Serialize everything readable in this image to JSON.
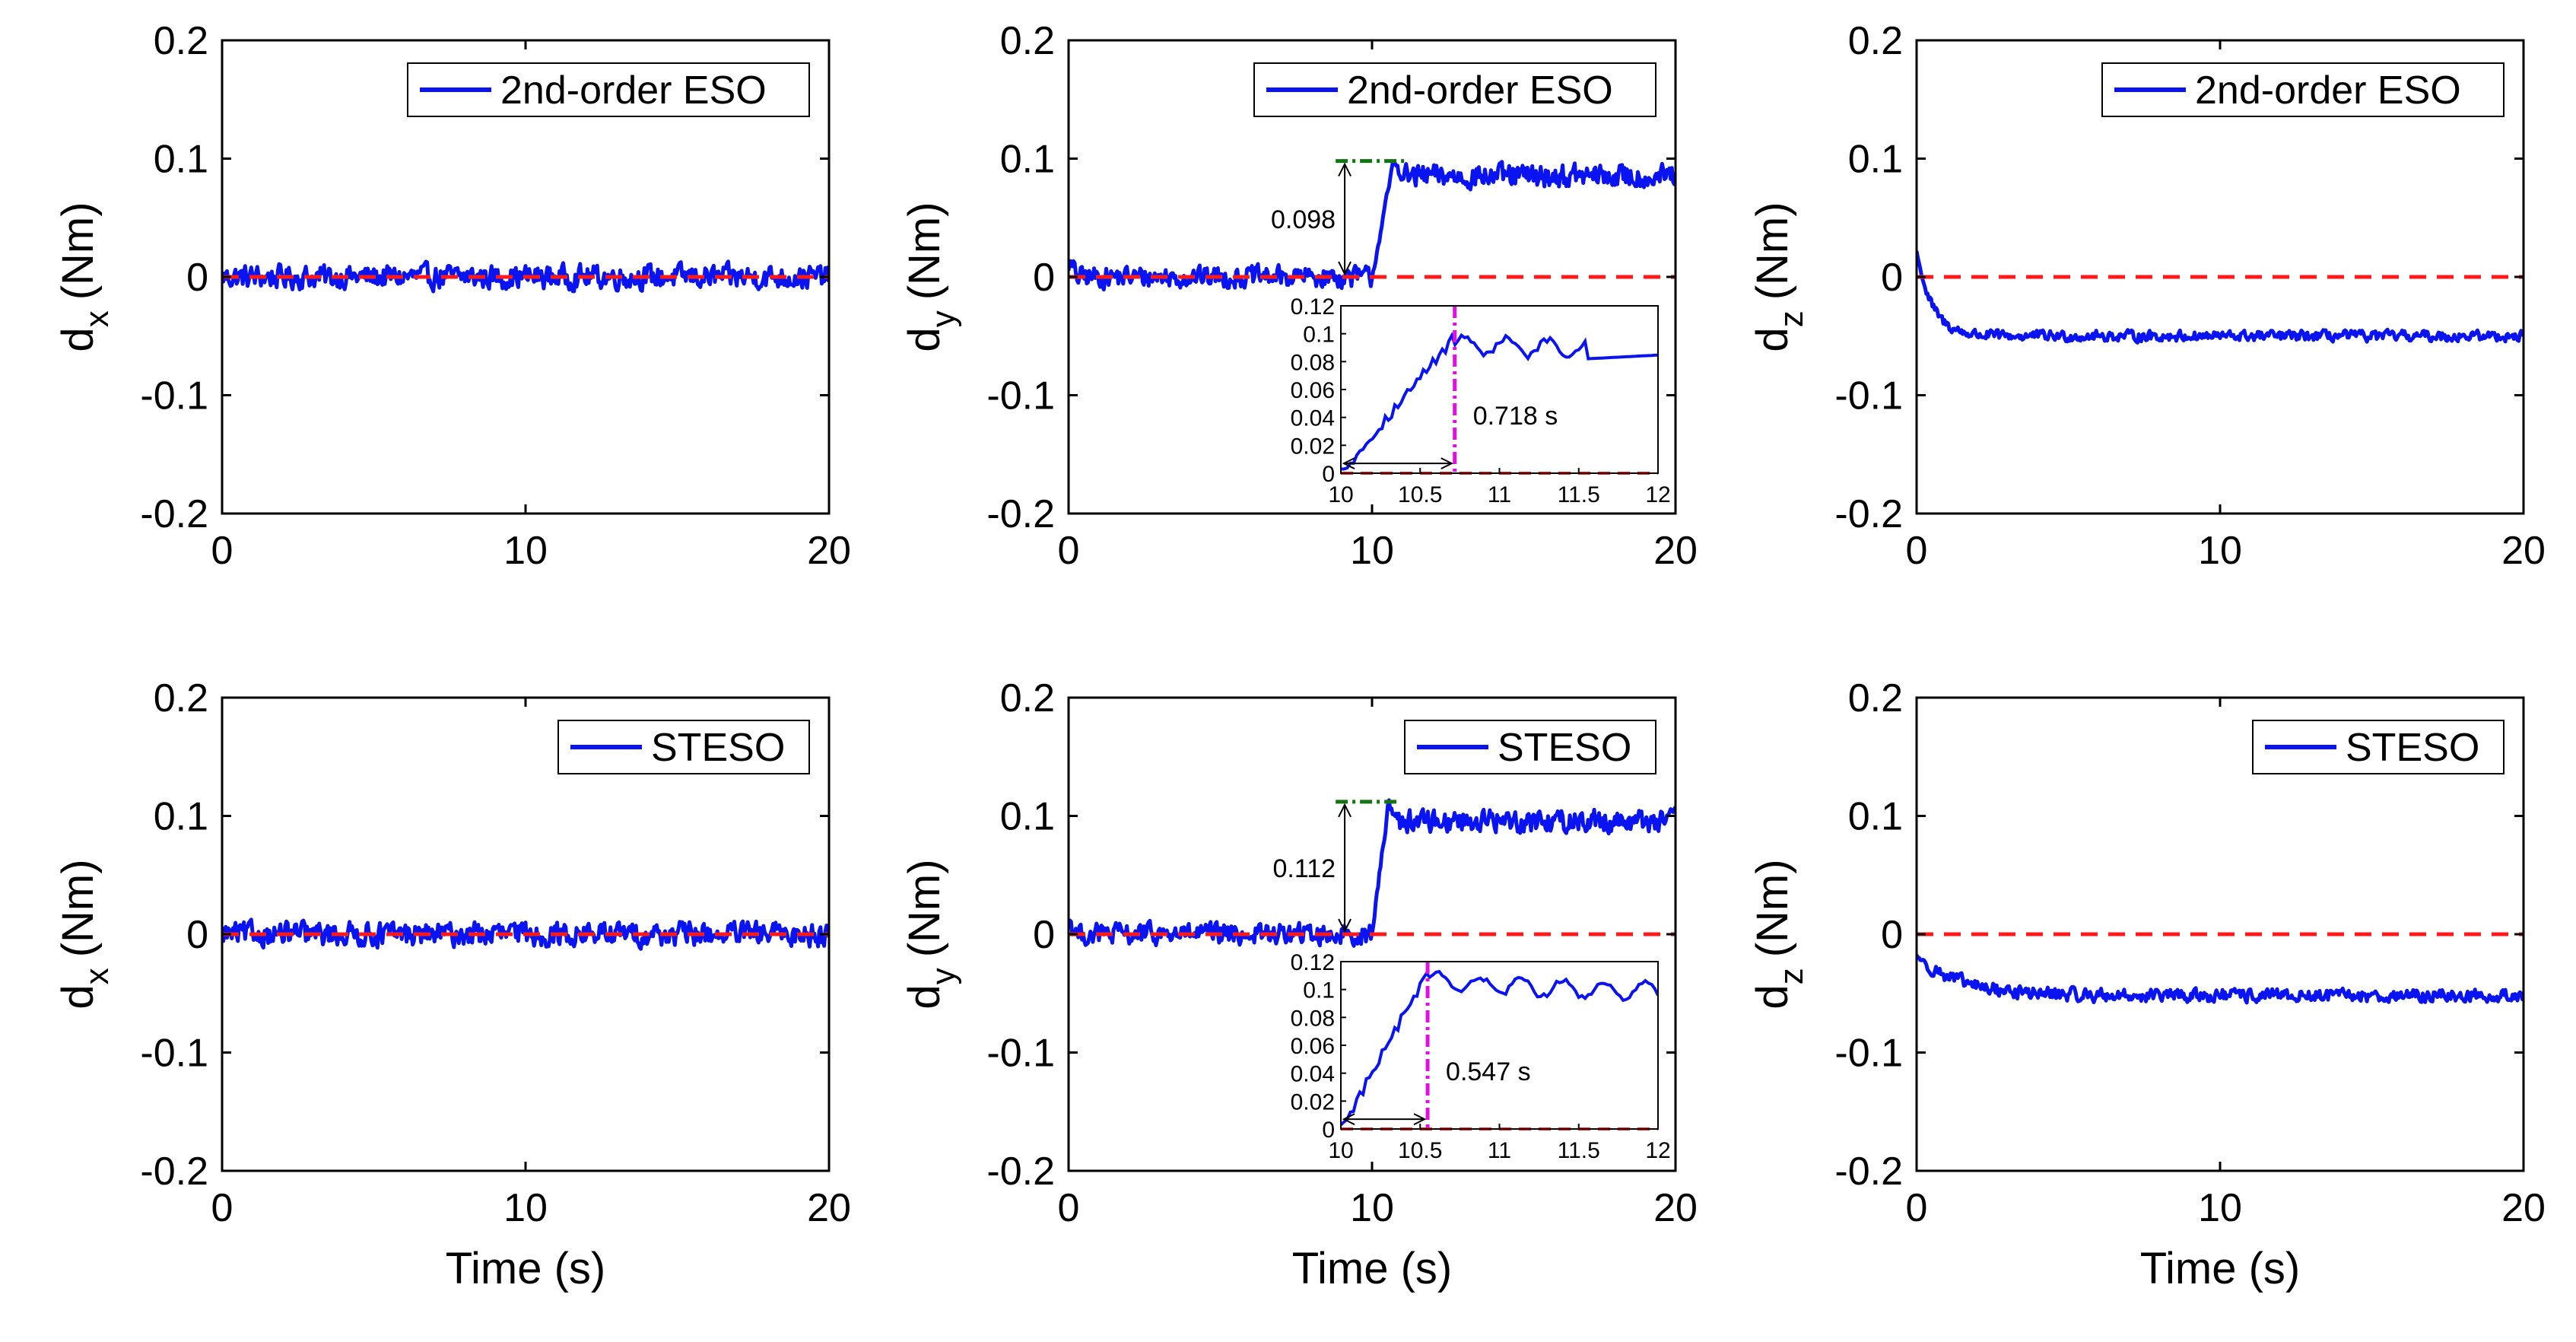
{
  "colors": {
    "estimate": "#0a14f0",
    "reference": "#ff1a1a",
    "peak_marker": "#127512",
    "time_marker": "#e011e0",
    "axis": "#000000"
  },
  "chart_data": [
    {
      "type": "line",
      "row": 0,
      "col": 0,
      "ylabel_main": "d",
      "ylabel_sub": "x",
      "ylabel_unit": "(Nm)",
      "xlabel": "",
      "xlim": [
        0,
        20
      ],
      "ylim": [
        -0.2,
        0.2
      ],
      "xticks": [
        "0",
        "10",
        "20"
      ],
      "yticks": [
        "-0.2",
        "-0.1",
        "0",
        "0.1",
        "0.2"
      ],
      "legend": "2nd-order ESO",
      "series": [
        {
          "name": "2nd-order ESO",
          "profile": "dx_eso",
          "baseline": 0.0,
          "noise": 0.009
        },
        {
          "name": "reference",
          "constant": 0.0
        }
      ]
    },
    {
      "type": "line",
      "row": 0,
      "col": 1,
      "ylabel_main": "d",
      "ylabel_sub": "y",
      "ylabel_unit": "(Nm)",
      "xlabel": "",
      "xlim": [
        0,
        20
      ],
      "ylim": [
        -0.2,
        0.2
      ],
      "xticks": [
        "0",
        "10",
        "20"
      ],
      "yticks": [
        "-0.2",
        "-0.1",
        "0",
        "0.1",
        "0.2"
      ],
      "legend": "2nd-order ESO",
      "series": [
        {
          "name": "2nd-order ESO",
          "profile": "dy_eso",
          "step_time": 10.0,
          "step_duration": 0.718,
          "plateau": 0.085,
          "peak": 0.098,
          "noise": 0.009
        },
        {
          "name": "reference",
          "constant": 0.0
        }
      ],
      "annotation": {
        "peak_value": 0.098,
        "peak_label": "0.098",
        "time_label": "0.718 s"
      },
      "inset": {
        "xlim": [
          10,
          12
        ],
        "ylim": [
          0,
          0.12
        ],
        "xticks": [
          "10",
          "10.5",
          "11",
          "11.5",
          "12"
        ],
        "yticks": [
          "0",
          "0.02",
          "0.04",
          "0.06",
          "0.08",
          "0.1",
          "0.12"
        ],
        "marker_time": 10.718
      }
    },
    {
      "type": "line",
      "row": 0,
      "col": 2,
      "ylabel_main": "d",
      "ylabel_sub": "z",
      "ylabel_unit": "(Nm)",
      "xlabel": "",
      "xlim": [
        0,
        20
      ],
      "ylim": [
        -0.2,
        0.2
      ],
      "xticks": [
        "0",
        "10",
        "20"
      ],
      "yticks": [
        "-0.2",
        "-0.1",
        "0",
        "0.1",
        "0.2"
      ],
      "legend": "2nd-order ESO",
      "series": [
        {
          "name": "2nd-order ESO",
          "profile": "dz_eso",
          "start": 0.022,
          "plateau": -0.05,
          "noise": 0.004
        },
        {
          "name": "reference",
          "constant": 0.0
        }
      ]
    },
    {
      "type": "line",
      "row": 1,
      "col": 0,
      "ylabel_main": "d",
      "ylabel_sub": "x",
      "ylabel_unit": "(Nm)",
      "xlabel": "Time (s)",
      "xlim": [
        0,
        20
      ],
      "ylim": [
        -0.2,
        0.2
      ],
      "xticks": [
        "0",
        "10",
        "20"
      ],
      "yticks": [
        "-0.2",
        "-0.1",
        "0",
        "0.1",
        "0.2"
      ],
      "legend": "STESO",
      "series": [
        {
          "name": "STESO",
          "profile": "dx_steso",
          "baseline": 0.0,
          "noise": 0.009
        },
        {
          "name": "reference",
          "constant": 0.0
        }
      ]
    },
    {
      "type": "line",
      "row": 1,
      "col": 1,
      "ylabel_main": "d",
      "ylabel_sub": "y",
      "ylabel_unit": "(Nm)",
      "xlabel": "Time (s)",
      "xlim": [
        0,
        20
      ],
      "ylim": [
        -0.2,
        0.2
      ],
      "xticks": [
        "0",
        "10",
        "20"
      ],
      "yticks": [
        "-0.2",
        "-0.1",
        "0",
        "0.1",
        "0.2"
      ],
      "legend": "STESO",
      "series": [
        {
          "name": "STESO",
          "profile": "dy_steso",
          "step_time": 10.0,
          "step_duration": 0.547,
          "plateau": 0.096,
          "peak": 0.112,
          "noise": 0.009
        },
        {
          "name": "reference",
          "constant": 0.0
        }
      ],
      "annotation": {
        "peak_value": 0.112,
        "peak_label": "0.112",
        "time_label": "0.547 s"
      },
      "inset": {
        "xlim": [
          10,
          12
        ],
        "ylim": [
          0,
          0.12
        ],
        "xticks": [
          "10",
          "10.5",
          "11",
          "11.5",
          "12"
        ],
        "yticks": [
          "0",
          "0.02",
          "0.04",
          "0.06",
          "0.08",
          "0.1",
          "0.12"
        ],
        "marker_time": 10.547
      }
    },
    {
      "type": "line",
      "row": 1,
      "col": 2,
      "ylabel_main": "d",
      "ylabel_sub": "z",
      "ylabel_unit": "(Nm)",
      "xlabel": "Time (s)",
      "xlim": [
        0,
        20
      ],
      "ylim": [
        -0.2,
        0.2
      ],
      "xticks": [
        "0",
        "10",
        "20"
      ],
      "yticks": [
        "-0.2",
        "-0.1",
        "0",
        "0.1",
        "0.2"
      ],
      "legend": "STESO",
      "series": [
        {
          "name": "STESO",
          "profile": "dz_steso",
          "start": -0.018,
          "plateau": -0.052,
          "noise": 0.005
        },
        {
          "name": "reference",
          "constant": 0.0
        }
      ]
    }
  ]
}
